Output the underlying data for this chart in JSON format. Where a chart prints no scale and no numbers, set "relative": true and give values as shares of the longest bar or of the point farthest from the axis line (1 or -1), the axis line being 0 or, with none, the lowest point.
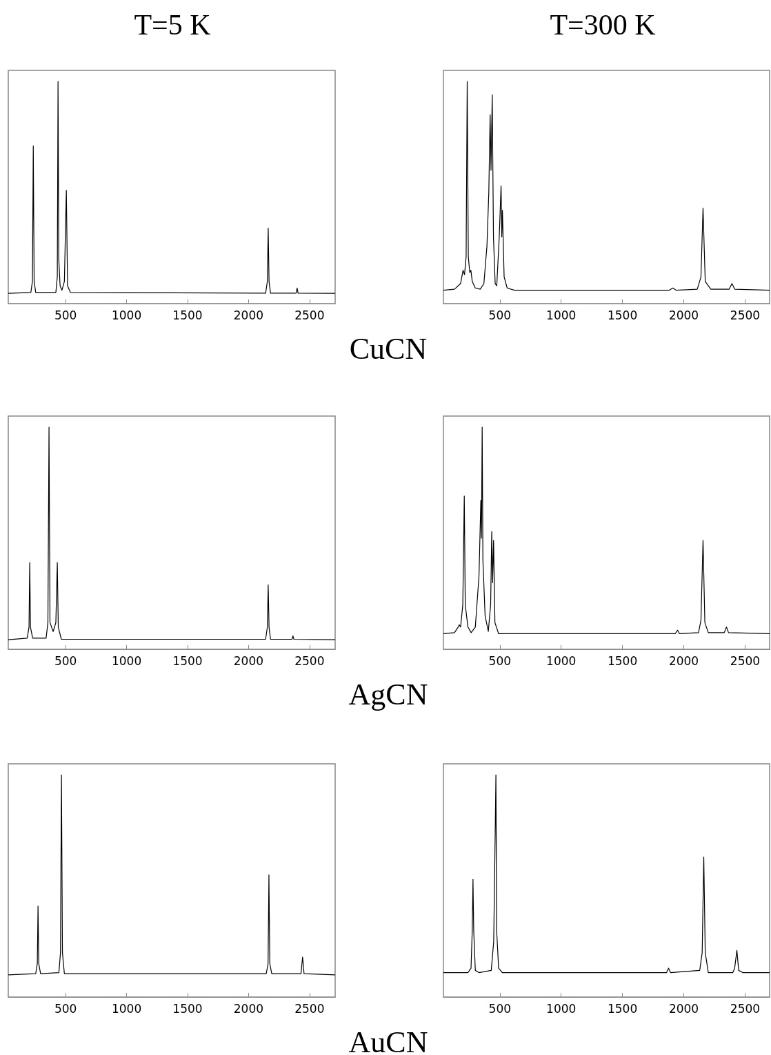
{
  "chart_data": [
    {
      "type": "line",
      "title": "T=5 K",
      "relative": true,
      "xlim": [
        30,
        2710
      ],
      "xticks": [
        500,
        1000,
        1500,
        2000,
        2500
      ],
      "annotations": [
        "CuCN"
      ],
      "series": [
        {
          "color": "#000000",
          "x": [
            30,
            215,
            228,
            235,
            242,
            255,
            420,
            432,
            438,
            444,
            455,
            470,
            490,
            506,
            516,
            540,
            2140,
            2154,
            2161,
            2168,
            2180,
            2390,
            2398,
            2406,
            2710
          ],
          "values": [
            0.046,
            0.05,
            0.1,
            0.71,
            0.1,
            0.05,
            0.05,
            0.12,
            1.0,
            0.2,
            0.08,
            0.06,
            0.1,
            0.51,
            0.08,
            0.05,
            0.047,
            0.1,
            0.34,
            0.1,
            0.047,
            0.047,
            0.07,
            0.047,
            0.046
          ]
        }
      ]
    },
    {
      "type": "line",
      "title": "T=300 K",
      "relative": true,
      "xlim": [
        40,
        2700
      ],
      "xticks": [
        500,
        1000,
        1500,
        2000,
        2500
      ],
      "series": [
        {
          "color": "#000000",
          "x": [
            40,
            130,
            180,
            200,
            212,
            225,
            234,
            243,
            255,
            264,
            275,
            300,
            340,
            370,
            395,
            410,
            421,
            428,
            438,
            448,
            462,
            475,
            495,
            510,
            516,
            521,
            535,
            560,
            620,
            1880,
            1910,
            1940,
            2110,
            2140,
            2157,
            2175,
            2220,
            2370,
            2393,
            2415,
            2700
          ],
          "values": [
            0.06,
            0.065,
            0.09,
            0.15,
            0.13,
            0.21,
            1.0,
            0.21,
            0.14,
            0.15,
            0.1,
            0.07,
            0.065,
            0.09,
            0.26,
            0.5,
            0.85,
            0.6,
            0.94,
            0.3,
            0.09,
            0.08,
            0.3,
            0.53,
            0.3,
            0.42,
            0.12,
            0.07,
            0.06,
            0.06,
            0.07,
            0.06,
            0.065,
            0.12,
            0.43,
            0.1,
            0.065,
            0.065,
            0.09,
            0.065,
            0.06
          ]
        }
      ]
    },
    {
      "type": "line",
      "relative": true,
      "xlim": [
        30,
        2710
      ],
      "xticks": [
        500,
        1000,
        1500,
        2000,
        2500
      ],
      "annotations": [
        "AgCN"
      ],
      "series": [
        {
          "color": "#000000",
          "x": [
            30,
            185,
            200,
            206,
            212,
            230,
            340,
            355,
            364,
            372,
            398,
            420,
            432,
            440,
            465,
            2140,
            2154,
            2161,
            2168,
            2180,
            2356,
            2364,
            2372,
            2710
          ],
          "values": [
            0.043,
            0.05,
            0.1,
            0.39,
            0.1,
            0.05,
            0.05,
            0.12,
            1.0,
            0.12,
            0.08,
            0.12,
            0.39,
            0.1,
            0.045,
            0.045,
            0.1,
            0.29,
            0.1,
            0.045,
            0.045,
            0.06,
            0.045,
            0.043
          ]
        }
      ]
    },
    {
      "type": "line",
      "relative": true,
      "xlim": [
        40,
        2700
      ],
      "xticks": [
        500,
        1000,
        1500,
        2000,
        2500
      ],
      "series": [
        {
          "color": "#000000",
          "x": [
            40,
            130,
            160,
            169,
            180,
            198,
            210,
            218,
            240,
            266,
            300,
            330,
            345,
            350,
            356,
            362,
            380,
            406,
            425,
            434,
            441,
            449,
            460,
            490,
            1930,
            1949,
            1965,
            2120,
            2140,
            2157,
            2172,
            2200,
            2330,
            2348,
            2365,
            2700
          ],
          "values": [
            0.07,
            0.075,
            0.1,
            0.11,
            0.1,
            0.2,
            0.69,
            0.2,
            0.1,
            0.075,
            0.1,
            0.33,
            0.67,
            0.5,
            1.0,
            0.4,
            0.15,
            0.08,
            0.2,
            0.53,
            0.3,
            0.49,
            0.12,
            0.07,
            0.07,
            0.086,
            0.07,
            0.075,
            0.13,
            0.49,
            0.12,
            0.075,
            0.075,
            0.1,
            0.075,
            0.07
          ]
        }
      ]
    },
    {
      "type": "line",
      "relative": true,
      "xlim": [
        30,
        2710
      ],
      "xticks": [
        500,
        1000,
        1500,
        2000,
        2500
      ],
      "annotations": [
        "AuCN"
      ],
      "series": [
        {
          "color": "#000000",
          "x": [
            30,
            255,
            268,
            274,
            280,
            295,
            445,
            458,
            466,
            474,
            490,
            2145,
            2160,
            2167,
            2174,
            2190,
            2430,
            2443,
            2455,
            2710
          ],
          "values": [
            0.1,
            0.105,
            0.15,
            0.41,
            0.15,
            0.105,
            0.11,
            0.2,
            1.0,
            0.2,
            0.105,
            0.105,
            0.15,
            0.55,
            0.15,
            0.105,
            0.105,
            0.18,
            0.105,
            0.1
          ]
        }
      ]
    },
    {
      "type": "line",
      "relative": true,
      "xlim": [
        40,
        2700
      ],
      "xticks": [
        500,
        1000,
        1500,
        2000,
        2500
      ],
      "series": [
        {
          "color": "#000000",
          "x": [
            40,
            240,
            265,
            275,
            281,
            287,
            300,
            330,
            430,
            450,
            462,
            468,
            474,
            490,
            520,
            1860,
            1876,
            1892,
            2130,
            2150,
            2163,
            2175,
            2200,
            2400,
            2415,
            2433,
            2448,
            2480,
            2700
          ],
          "values": [
            0.11,
            0.11,
            0.13,
            0.3,
            0.53,
            0.3,
            0.12,
            0.11,
            0.12,
            0.25,
            0.73,
            1.0,
            0.3,
            0.13,
            0.11,
            0.11,
            0.13,
            0.11,
            0.12,
            0.2,
            0.63,
            0.2,
            0.11,
            0.11,
            0.13,
            0.21,
            0.12,
            0.11,
            0.11
          ]
        }
      ]
    }
  ]
}
